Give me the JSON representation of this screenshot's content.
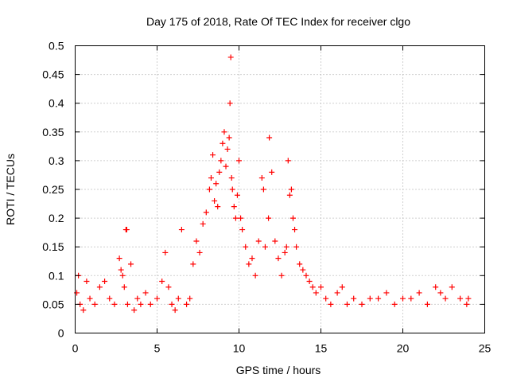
{
  "chart_data": {
    "type": "scatter",
    "title": "Day 175 of 2018, Rate Of TEC Index for receiver clgo",
    "xlabel": "GPS time / hours",
    "ylabel": "ROTI / TECUs",
    "xlim": [
      0,
      25
    ],
    "ylim": [
      0,
      0.5
    ],
    "xticks": [
      0,
      5,
      10,
      15,
      20,
      25
    ],
    "xtick_labels": [
      "0",
      "5",
      "10",
      "15",
      "20",
      "25"
    ],
    "yticks": [
      0,
      0.05,
      0.1,
      0.15,
      0.2,
      0.25,
      0.3,
      0.35,
      0.4,
      0.45,
      0.5
    ],
    "ytick_labels": [
      "0",
      "0.05",
      "0.1",
      "0.15",
      "0.2",
      "0.25",
      "0.3",
      "0.35",
      "0.4",
      "0.45",
      "0.5"
    ],
    "grid": true,
    "marker": "+",
    "color": "#ff0000",
    "series": [
      {
        "name": "ROTI",
        "x": [
          0.1,
          0.2,
          0.3,
          0.5,
          0.7,
          0.9,
          1.2,
          1.5,
          1.8,
          2.1,
          2.4,
          2.7,
          2.8,
          2.9,
          3.0,
          3.1,
          3.15,
          3.2,
          3.4,
          3.6,
          3.8,
          4.0,
          4.3,
          4.6,
          5.0,
          5.3,
          5.5,
          5.7,
          5.9,
          6.1,
          6.3,
          6.5,
          6.8,
          7.0,
          7.2,
          7.4,
          7.6,
          7.8,
          8.0,
          8.2,
          8.3,
          8.4,
          8.5,
          8.6,
          8.7,
          8.8,
          8.9,
          9.0,
          9.1,
          9.2,
          9.3,
          9.4,
          9.45,
          9.5,
          9.55,
          9.6,
          9.7,
          9.8,
          9.9,
          10.0,
          10.1,
          10.2,
          10.4,
          10.6,
          10.8,
          11.0,
          11.2,
          11.4,
          11.5,
          11.6,
          11.8,
          11.85,
          12.0,
          12.2,
          12.4,
          12.6,
          12.8,
          12.9,
          13.0,
          13.1,
          13.2,
          13.3,
          13.4,
          13.5,
          13.7,
          13.9,
          14.1,
          14.3,
          14.5,
          14.7,
          15.0,
          15.3,
          15.6,
          16.0,
          16.3,
          16.6,
          17.0,
          17.5,
          18.0,
          18.5,
          19.0,
          19.5,
          20.0,
          20.5,
          21.0,
          21.5,
          22.0,
          22.3,
          22.6,
          23.0,
          23.5,
          23.9,
          24.0
        ],
        "y": [
          0.07,
          0.1,
          0.05,
          0.04,
          0.09,
          0.06,
          0.05,
          0.08,
          0.09,
          0.06,
          0.05,
          0.13,
          0.11,
          0.1,
          0.08,
          0.18,
          0.18,
          0.05,
          0.12,
          0.04,
          0.06,
          0.05,
          0.07,
          0.05,
          0.06,
          0.09,
          0.14,
          0.08,
          0.05,
          0.04,
          0.06,
          0.18,
          0.05,
          0.06,
          0.12,
          0.16,
          0.14,
          0.19,
          0.21,
          0.25,
          0.27,
          0.31,
          0.23,
          0.26,
          0.22,
          0.28,
          0.3,
          0.33,
          0.35,
          0.29,
          0.32,
          0.34,
          0.4,
          0.48,
          0.27,
          0.25,
          0.22,
          0.2,
          0.24,
          0.3,
          0.2,
          0.18,
          0.15,
          0.12,
          0.13,
          0.1,
          0.16,
          0.27,
          0.25,
          0.15,
          0.2,
          0.34,
          0.28,
          0.16,
          0.13,
          0.1,
          0.14,
          0.15,
          0.3,
          0.24,
          0.25,
          0.2,
          0.18,
          0.15,
          0.12,
          0.11,
          0.1,
          0.09,
          0.08,
          0.07,
          0.08,
          0.06,
          0.05,
          0.07,
          0.08,
          0.05,
          0.06,
          0.05,
          0.06,
          0.06,
          0.07,
          0.05,
          0.06,
          0.06,
          0.07,
          0.05,
          0.08,
          0.07,
          0.06,
          0.08,
          0.06,
          0.05,
          0.06
        ]
      }
    ]
  }
}
